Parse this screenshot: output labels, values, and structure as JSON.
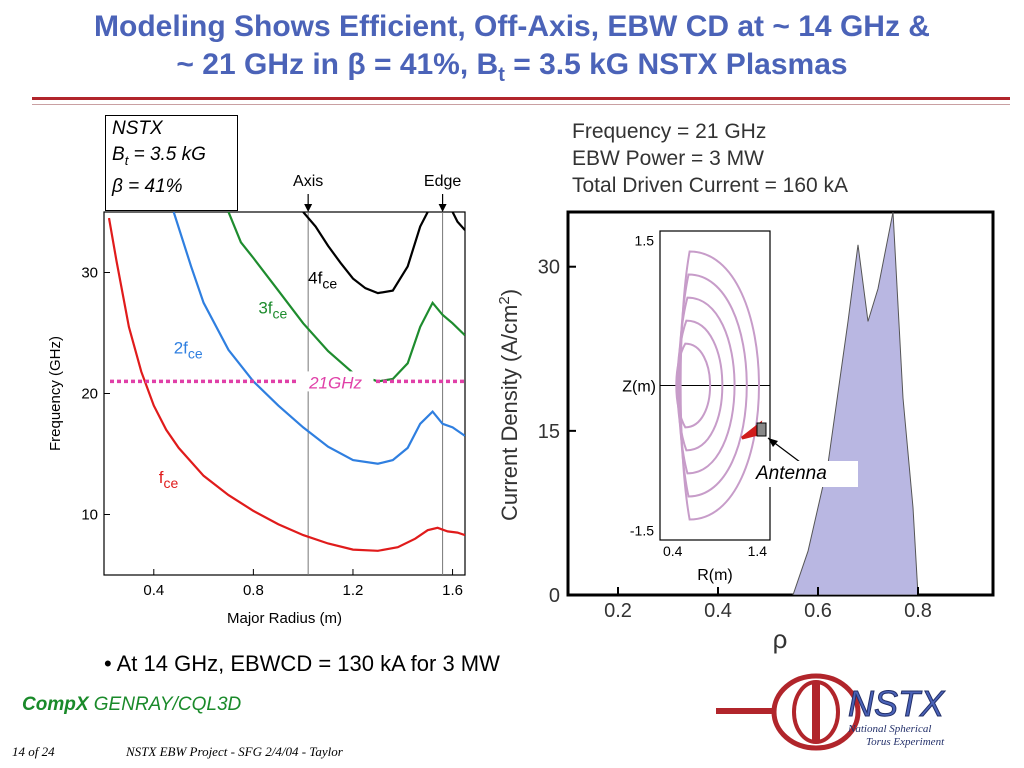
{
  "slide": {
    "title_line1": "Modeling Shows Efficient, Off-Axis, EBW CD at ~ 14 GHz &",
    "title_line2_prefix": "~ 21 GHz in ",
    "title_beta": "β",
    "title_line2_mid": " = 41%, B",
    "title_sub_t": "t",
    "title_line2_suffix": " = 3.5 kG NSTX Plasmas",
    "bullet": "At 14 GHz, EBWCD = 130 kA for 3 MW",
    "compx_bold": "CompX",
    "compx_rest": " GENRAY/CQL3D",
    "page": "14 of 24",
    "footer_text": "NSTX EBW Project - SFG 2/4/04 - Taylor",
    "logo_text": "NSTX",
    "logo_sub1": "National Spherical",
    "logo_sub2": "Torus Experiment",
    "colors": {
      "title": "#4b63b8",
      "rule": "#b1252b",
      "compx": "#1a8a2a"
    }
  },
  "chart_data": [
    {
      "type": "line",
      "xlabel": "Major Radius (m)",
      "ylabel": "Frequency (GHz)",
      "xlim": [
        0.2,
        1.65
      ],
      "ylim": [
        5,
        35
      ],
      "xticks": [
        0.4,
        0.8,
        1.2,
        1.6
      ],
      "xtick_labels": [
        "0.4",
        "0.8",
        "1.2",
        "1.6"
      ],
      "yticks": [
        10,
        20,
        30
      ],
      "ytick_labels": [
        "10",
        "20",
        "30"
      ],
      "legend_box": {
        "line1": "NSTX",
        "line2_prefix": "B",
        "line2_sub": "t",
        "line2_suffix": " = 3.5 kG",
        "line3_sym": "β",
        "line3_rest": " = 41%"
      },
      "markers": [
        {
          "label": "Axis",
          "x": 1.02
        },
        {
          "label": "Edge",
          "x": 1.56
        }
      ],
      "hline": {
        "label": "21GHz",
        "y": 21,
        "color": "#e040a8"
      },
      "series": [
        {
          "name": "fce",
          "label_main": "f",
          "label_sub": "ce",
          "label_at": [
            0.42,
            12.6
          ],
          "color": "#e01b1b",
          "x": [
            0.22,
            0.25,
            0.3,
            0.35,
            0.4,
            0.45,
            0.5,
            0.6,
            0.7,
            0.8,
            0.9,
            1.0,
            1.1,
            1.2,
            1.3,
            1.38,
            1.45,
            1.5,
            1.54,
            1.58,
            1.62,
            1.65
          ],
          "y": [
            34.5,
            31.0,
            25.5,
            21.8,
            19.0,
            17.0,
            15.5,
            13.2,
            11.6,
            10.3,
            9.2,
            8.3,
            7.6,
            7.1,
            7.0,
            7.3,
            8.0,
            8.7,
            8.9,
            8.6,
            8.5,
            8.3
          ]
        },
        {
          "name": "2fce",
          "label_main": "2f",
          "label_sub": "ce",
          "label_at": [
            0.48,
            23.3
          ],
          "color": "#2f7fe0",
          "x": [
            0.48,
            0.55,
            0.6,
            0.7,
            0.8,
            0.9,
            1.0,
            1.1,
            1.2,
            1.3,
            1.36,
            1.42,
            1.47,
            1.52,
            1.56,
            1.6,
            1.65
          ],
          "y": [
            35.0,
            30.5,
            27.5,
            23.6,
            21.0,
            19.0,
            17.2,
            15.6,
            14.5,
            14.2,
            14.5,
            15.5,
            17.5,
            18.5,
            17.5,
            17.2,
            16.5
          ]
        },
        {
          "name": "3fce",
          "label_main": "3f",
          "label_sub": "ce",
          "label_at": [
            0.82,
            26.6
          ],
          "color": "#1e8c2e",
          "x": [
            0.7,
            0.75,
            0.8,
            0.9,
            1.0,
            1.1,
            1.2,
            1.3,
            1.36,
            1.42,
            1.47,
            1.52,
            1.56,
            1.6,
            1.65
          ],
          "y": [
            35.0,
            32.5,
            31.2,
            28.5,
            25.8,
            23.5,
            21.7,
            21.0,
            21.2,
            22.5,
            25.5,
            27.5,
            26.5,
            25.8,
            24.8
          ]
        },
        {
          "name": "4fce",
          "label_main": "4f",
          "label_sub": "ce",
          "label_at": [
            1.02,
            29.1
          ],
          "color": "#000000",
          "x": [
            1.0,
            1.05,
            1.1,
            1.15,
            1.2,
            1.25,
            1.3,
            1.36,
            1.42,
            1.47,
            1.5
          ],
          "y": [
            35.0,
            33.8,
            32.2,
            30.8,
            29.5,
            28.7,
            28.3,
            28.5,
            30.5,
            33.8,
            35.0
          ]
        },
        {
          "name": "4fce-edge",
          "label_main": "",
          "label_sub": "",
          "label_at": null,
          "color": "#000000",
          "x": [
            1.6,
            1.62,
            1.65
          ],
          "y": [
            35.0,
            34.2,
            33.5
          ]
        }
      ]
    },
    {
      "type": "area",
      "info_lines": [
        "Frequency = 21 GHz",
        "EBW Power = 3 MW",
        "Total Driven Current = 160 kA"
      ],
      "xlabel": "ρ",
      "ylabel_main": "Current Density (A/cm",
      "ylabel_sup": "2",
      "ylabel_close": ")",
      "xlim": [
        0.1,
        0.95
      ],
      "ylim": [
        0,
        35
      ],
      "xticks": [
        0.2,
        0.4,
        0.6,
        0.8
      ],
      "xtick_labels": [
        "0.2",
        "0.4",
        "0.6",
        "0.8"
      ],
      "yticks": [
        0,
        15,
        30
      ],
      "ytick_labels": [
        "0",
        "15",
        "30"
      ],
      "fill_color": "#b9b7e2",
      "x": [
        0.55,
        0.58,
        0.62,
        0.66,
        0.68,
        0.7,
        0.72,
        0.75,
        0.77,
        0.79,
        0.8
      ],
      "y": [
        0.0,
        4.0,
        12.0,
        25.0,
        32.0,
        25.0,
        28.0,
        35.0,
        18.0,
        8.0,
        0.0
      ],
      "inset": {
        "xlabel": "R(m)",
        "ylabel": "Z(m)",
        "xlim": [
          0.25,
          1.55
        ],
        "ylim": [
          -1.6,
          1.6
        ],
        "xticks": [
          0.4,
          1.4
        ],
        "xtick_labels": [
          "0.4",
          "1.4"
        ],
        "yticks": [
          1.5,
          -1.5
        ],
        "ytick_labels": [
          "1.5",
          "-1.5"
        ],
        "flux_color": "#c79cc9",
        "antenna_label": "Antenna"
      }
    }
  ]
}
